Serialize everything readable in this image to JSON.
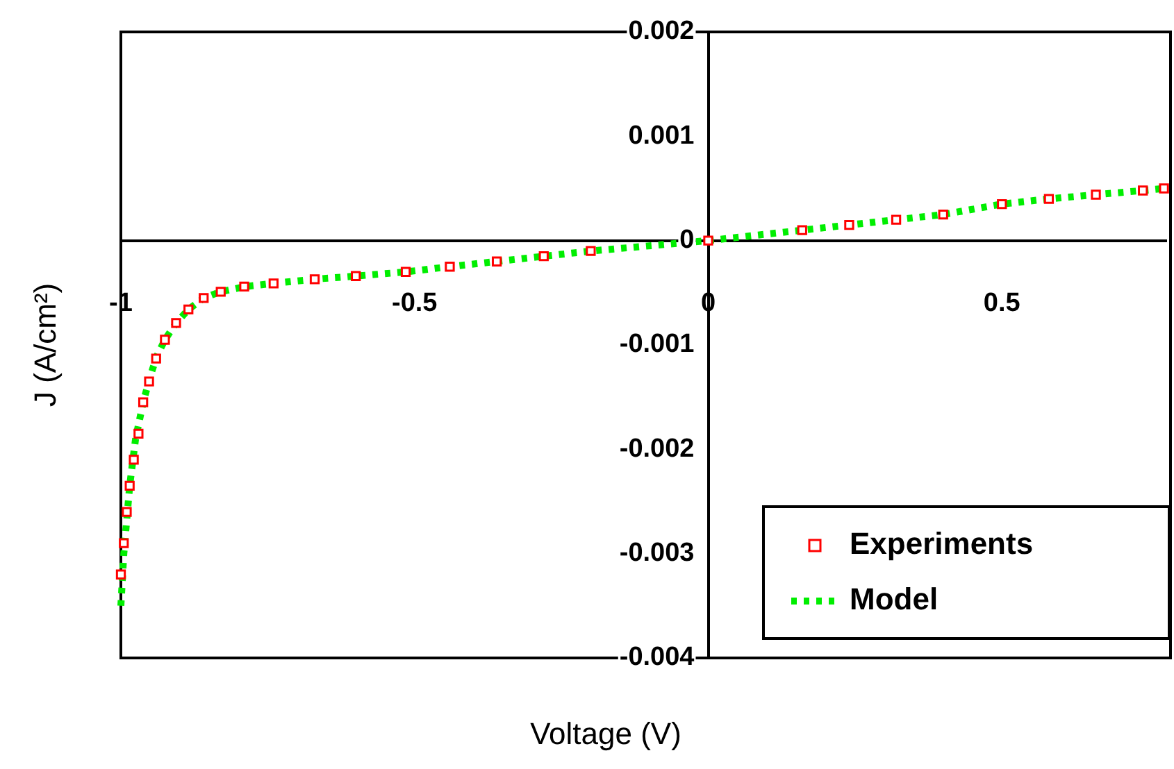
{
  "chart_data": {
    "type": "scatter",
    "xlabel": "Voltage (V)",
    "ylabel": "J (A/cm²)",
    "xlim": [
      -1,
      0.78
    ],
    "ylim": [
      -0.004,
      0.002
    ],
    "xticks": [
      -1,
      -0.5,
      0,
      0.5
    ],
    "yticks": [
      -0.004,
      -0.003,
      -0.002,
      -0.001,
      0,
      0.001,
      0.002
    ],
    "grid": false,
    "legend": "bottom right",
    "series": [
      {
        "name": "Experiments",
        "type": "scatter",
        "marker": "square",
        "color": "#ff0000",
        "x": [
          -1.0,
          -0.995,
          -0.99,
          -0.985,
          -0.978,
          -0.97,
          -0.962,
          -0.952,
          -0.94,
          -0.925,
          -0.906,
          -0.885,
          -0.859,
          -0.83,
          -0.79,
          -0.74,
          -0.67,
          -0.6,
          -0.515,
          -0.44,
          -0.36,
          -0.28,
          -0.2,
          0.0,
          0.16,
          0.24,
          0.32,
          0.4,
          0.5,
          0.58,
          0.66,
          0.74,
          0.776
        ],
        "values": [
          -0.0032,
          -0.0029,
          -0.0026,
          -0.00235,
          -0.0021,
          -0.00185,
          -0.00155,
          -0.00135,
          -0.00113,
          -0.00095,
          -0.00079,
          -0.00066,
          -0.00055,
          -0.00049,
          -0.00044,
          -0.00041,
          -0.00037,
          -0.00034,
          -0.0003,
          -0.00025,
          -0.0002,
          -0.00015,
          -0.0001,
          0.0,
          0.0001,
          0.00015,
          0.0002,
          0.00025,
          0.00035,
          0.0004,
          0.00044,
          0.00048,
          0.0005
        ]
      },
      {
        "name": "Model",
        "type": "line",
        "marker": "none",
        "line_style": "dotted",
        "color": "#00ee00",
        "x": [
          -1.0,
          -0.995,
          -0.985,
          -0.975,
          -0.962,
          -0.95,
          -0.939,
          -0.925,
          -0.906,
          -0.885,
          -0.859,
          -0.83,
          -0.788,
          -0.74,
          -0.671,
          -0.6,
          -0.515,
          -0.44,
          -0.36,
          -0.28,
          -0.2,
          0.0,
          0.16,
          0.24,
          0.32,
          0.4,
          0.5,
          0.58,
          0.66,
          0.74,
          0.776
        ],
        "values": [
          -0.0035,
          -0.003,
          -0.00235,
          -0.0019,
          -0.00155,
          -0.0013,
          -0.00111,
          -0.00095,
          -0.00079,
          -0.00066,
          -0.00055,
          -0.00049,
          -0.00044,
          -0.00041,
          -0.00037,
          -0.00034,
          -0.0003,
          -0.00025,
          -0.0002,
          -0.00015,
          -0.0001,
          0.0,
          0.0001,
          0.00015,
          0.0002,
          0.00025,
          0.00035,
          0.0004,
          0.00044,
          0.00048,
          0.0005
        ]
      }
    ]
  }
}
